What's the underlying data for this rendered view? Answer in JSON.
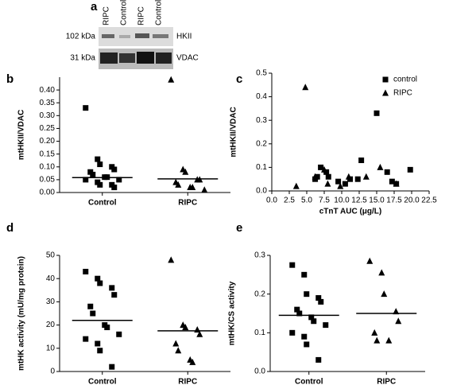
{
  "blot": {
    "label": "a",
    "lanes": [
      "RIPC",
      "Control",
      "RIPC",
      "Control"
    ],
    "rows": [
      {
        "marker": "102 kDa",
        "protein": "HKII"
      },
      {
        "marker": "31 kDa",
        "protein": "VDAC"
      }
    ]
  },
  "chart_data": [
    {
      "type": "strip",
      "label": "b",
      "ylabel": "mtHKII/VDAC",
      "categories": [
        "Control",
        "RIPC"
      ],
      "markers": [
        "square",
        "triangle"
      ],
      "values": [
        [
          0.33,
          0.13,
          0.11,
          0.1,
          0.09,
          0.08,
          0.07,
          0.06,
          0.06,
          0.05,
          0.05,
          0.04,
          0.03,
          0.03,
          0.02
        ],
        [
          0.44,
          0.09,
          0.08,
          0.05,
          0.05,
          0.04,
          0.03,
          0.02,
          0.02,
          0.01
        ]
      ],
      "means": [
        0.058,
        0.053
      ],
      "ylim": [
        0,
        0.45
      ],
      "yticks": [
        {
          "value": 0,
          "label": "0.00"
        },
        {
          "value": 0.05,
          "label": "0.05"
        },
        {
          "value": 0.1,
          "label": "0.10"
        },
        {
          "value": 0.15,
          "label": "0.15"
        },
        {
          "value": 0.2,
          "label": "0.20"
        },
        {
          "value": 0.25,
          "label": "0.25"
        },
        {
          "value": 0.3,
          "label": "0.30"
        },
        {
          "value": 0.35,
          "label": "0.35"
        },
        {
          "value": 0.4,
          "label": "0.40"
        }
      ]
    },
    {
      "type": "scatter",
      "label": "c",
      "xlabel": "cTnT AUC (μg/L)",
      "ylabel": "mtHKII/VDAC",
      "legend": "upper right",
      "series": [
        {
          "name": "control",
          "marker": "square",
          "x": [
            6.2,
            6.5,
            7,
            7.8,
            8.1,
            9.5,
            10.5,
            11.2,
            12.3,
            12.8,
            15,
            16.5,
            17.2,
            17.8,
            19.8
          ],
          "values": [
            0.05,
            0.06,
            0.1,
            0.08,
            0.06,
            0.04,
            0.03,
            0.05,
            0.05,
            0.13,
            0.33,
            0.08,
            0.04,
            0.03,
            0.09
          ]
        },
        {
          "name": "RIPC",
          "marker": "triangle",
          "x": [
            3.5,
            4.8,
            6.2,
            7.5,
            8,
            9.8,
            11,
            13.5,
            15.5,
            17.8
          ],
          "values": [
            0.02,
            0.44,
            0.06,
            0.09,
            0.03,
            0.02,
            0.06,
            0.06,
            0.1,
            0.03
          ]
        }
      ],
      "xlim": [
        0,
        22.5
      ],
      "ylim": [
        0,
        0.5
      ],
      "xticks": [
        {
          "value": 0,
          "label": "0.0"
        },
        2.5,
        {
          "value": 5,
          "label": "5.0"
        },
        7.5,
        {
          "value": 10,
          "label": "10.0"
        },
        12.5,
        {
          "value": 15,
          "label": "15.0"
        },
        17.5,
        {
          "value": 20,
          "label": "20.0"
        },
        22.5
      ],
      "yticks": [
        {
          "value": 0,
          "label": "0.0"
        },
        0.1,
        0.2,
        0.3,
        0.4,
        0.5
      ]
    },
    {
      "type": "strip",
      "label": "d",
      "ylabel": "mtHK activity (mU/mg protein)",
      "categories": [
        "Control",
        "RIPC"
      ],
      "markers": [
        "square",
        "triangle"
      ],
      "values": [
        [
          43,
          40,
          38,
          36,
          33,
          28,
          25,
          20,
          19,
          16,
          14,
          12,
          9,
          2
        ],
        [
          48,
          20,
          19,
          18,
          16,
          12,
          9,
          5,
          4
        ]
      ],
      "means": [
        22,
        17.5
      ],
      "ylim": [
        0,
        50
      ],
      "yticks": [
        0,
        10,
        20,
        30,
        40,
        50
      ]
    },
    {
      "type": "strip",
      "label": "e",
      "ylabel": "mtHK/CS activity",
      "categories": [
        "Control",
        "RIPC"
      ],
      "markers": [
        "square",
        "triangle"
      ],
      "values": [
        [
          0.275,
          0.25,
          0.2,
          0.19,
          0.18,
          0.16,
          0.15,
          0.14,
          0.13,
          0.12,
          0.1,
          0.09,
          0.07,
          0.03
        ],
        [
          0.285,
          0.255,
          0.2,
          0.155,
          0.13,
          0.1,
          0.08,
          0.08
        ]
      ],
      "means": [
        0.145,
        0.15
      ],
      "ylim": [
        0,
        0.3
      ],
      "yticks": [
        {
          "value": 0,
          "label": "0.0"
        },
        0.1,
        0.2,
        0.3
      ]
    }
  ]
}
